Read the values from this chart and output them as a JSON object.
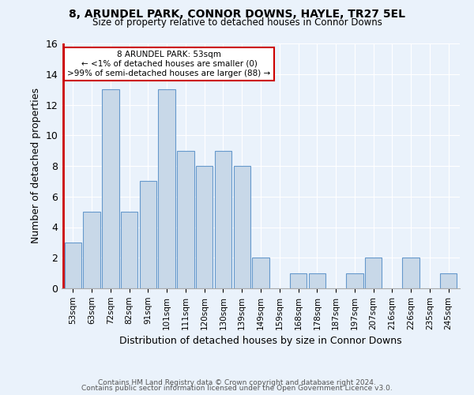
{
  "title": "8, ARUNDEL PARK, CONNOR DOWNS, HAYLE, TR27 5EL",
  "subtitle": "Size of property relative to detached houses in Connor Downs",
  "xlabel": "Distribution of detached houses by size in Connor Downs",
  "ylabel": "Number of detached properties",
  "bins": [
    "53sqm",
    "63sqm",
    "72sqm",
    "82sqm",
    "91sqm",
    "101sqm",
    "111sqm",
    "120sqm",
    "130sqm",
    "139sqm",
    "149sqm",
    "159sqm",
    "168sqm",
    "178sqm",
    "187sqm",
    "197sqm",
    "207sqm",
    "216sqm",
    "226sqm",
    "235sqm",
    "245sqm"
  ],
  "values": [
    3,
    5,
    13,
    5,
    7,
    13,
    9,
    8,
    9,
    8,
    2,
    0,
    1,
    1,
    0,
    1,
    2,
    0,
    2,
    0,
    1
  ],
  "bar_color": "#c8d8e8",
  "bar_edge_color": "#6699cc",
  "highlight_color": "#cc0000",
  "annotation_title": "8 ARUNDEL PARK: 53sqm",
  "annotation_line1": "← <1% of detached houses are smaller (0)",
  "annotation_line2": ">99% of semi-detached houses are larger (88) →",
  "annotation_box_color": "#ffffff",
  "annotation_box_edge": "#cc0000",
  "ylim": [
    0,
    16
  ],
  "yticks": [
    0,
    2,
    4,
    6,
    8,
    10,
    12,
    14,
    16
  ],
  "footer1": "Contains HM Land Registry data © Crown copyright and database right 2024.",
  "footer2": "Contains public sector information licensed under the Open Government Licence v3.0.",
  "bg_color": "#eaf2fb"
}
